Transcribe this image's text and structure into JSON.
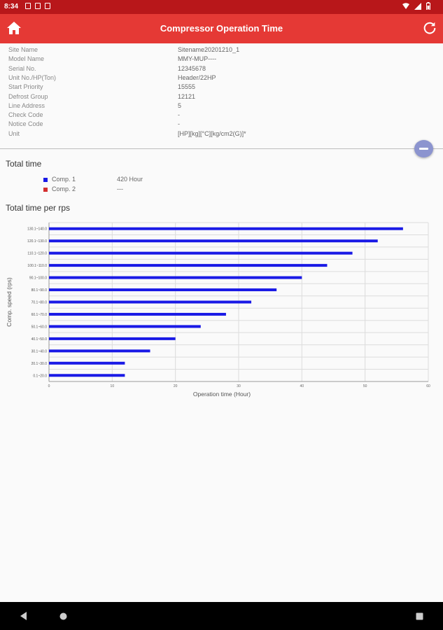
{
  "status_bar": {
    "time": "8:34",
    "icons": [
      "mail-icon",
      "sd-card-icon",
      "shield-icon"
    ],
    "right_icons": [
      "wifi-icon",
      "signal-icon",
      "battery-icon"
    ]
  },
  "app_bar": {
    "title": "Compressor Operation Time",
    "color": "#e53935",
    "status_color": "#b8171a"
  },
  "info": [
    {
      "label": "Site Name",
      "value": "Sitename20201210_1"
    },
    {
      "label": "Model Name",
      "value": "MMY-MUP----"
    },
    {
      "label": "Serial No.",
      "value": "12345678"
    },
    {
      "label": "Unit No./HP(Ton)",
      "value": "Header/22HP"
    },
    {
      "label": "Start Priority",
      "value": "15555"
    },
    {
      "label": "Defrost Group",
      "value": "12121"
    },
    {
      "label": "Line Address",
      "value": "5"
    },
    {
      "label": "Check Code",
      "value": "-"
    },
    {
      "label": "Notice Code",
      "value": "-"
    },
    {
      "label": "Unit",
      "value": "[HP][kg][°C][kg/cm2(G)]*"
    }
  ],
  "total_time": {
    "title": "Total time",
    "items": [
      {
        "name": "Comp. 1",
        "value": "420 Hour",
        "color": "#1a1ae6"
      },
      {
        "name": "Comp. 2",
        "value": "---",
        "color": "#d32f2f"
      }
    ]
  },
  "per_rps": {
    "title": "Total time per rps"
  },
  "chart_data": {
    "type": "bar",
    "orientation": "horizontal",
    "categories": [
      "0.1~20.0",
      "20.1~30.0",
      "30.1~40.0",
      "40.1~50.0",
      "50.1~60.0",
      "60.1~70.0",
      "70.1~80.0",
      "80.1~90.0",
      "90.1~100.0",
      "100.1~110.0",
      "110.1~120.0",
      "120.1~130.0",
      "130.1~140.0"
    ],
    "series": [
      {
        "name": "Comp. 1",
        "color": "#1a1ae6",
        "values": [
          12,
          12,
          16,
          20,
          24,
          28,
          32,
          36,
          40,
          44,
          48,
          52,
          56
        ]
      }
    ],
    "xlabel": "Operation time (Hour)",
    "ylabel": "Comp. speed (rps)",
    "xlim": [
      0,
      60
    ],
    "xticks": [
      0,
      10,
      20,
      30,
      40,
      50,
      60
    ],
    "grid": true
  },
  "nav_bar": {
    "buttons": [
      "back-icon",
      "home-icon",
      "recents-icon"
    ]
  }
}
